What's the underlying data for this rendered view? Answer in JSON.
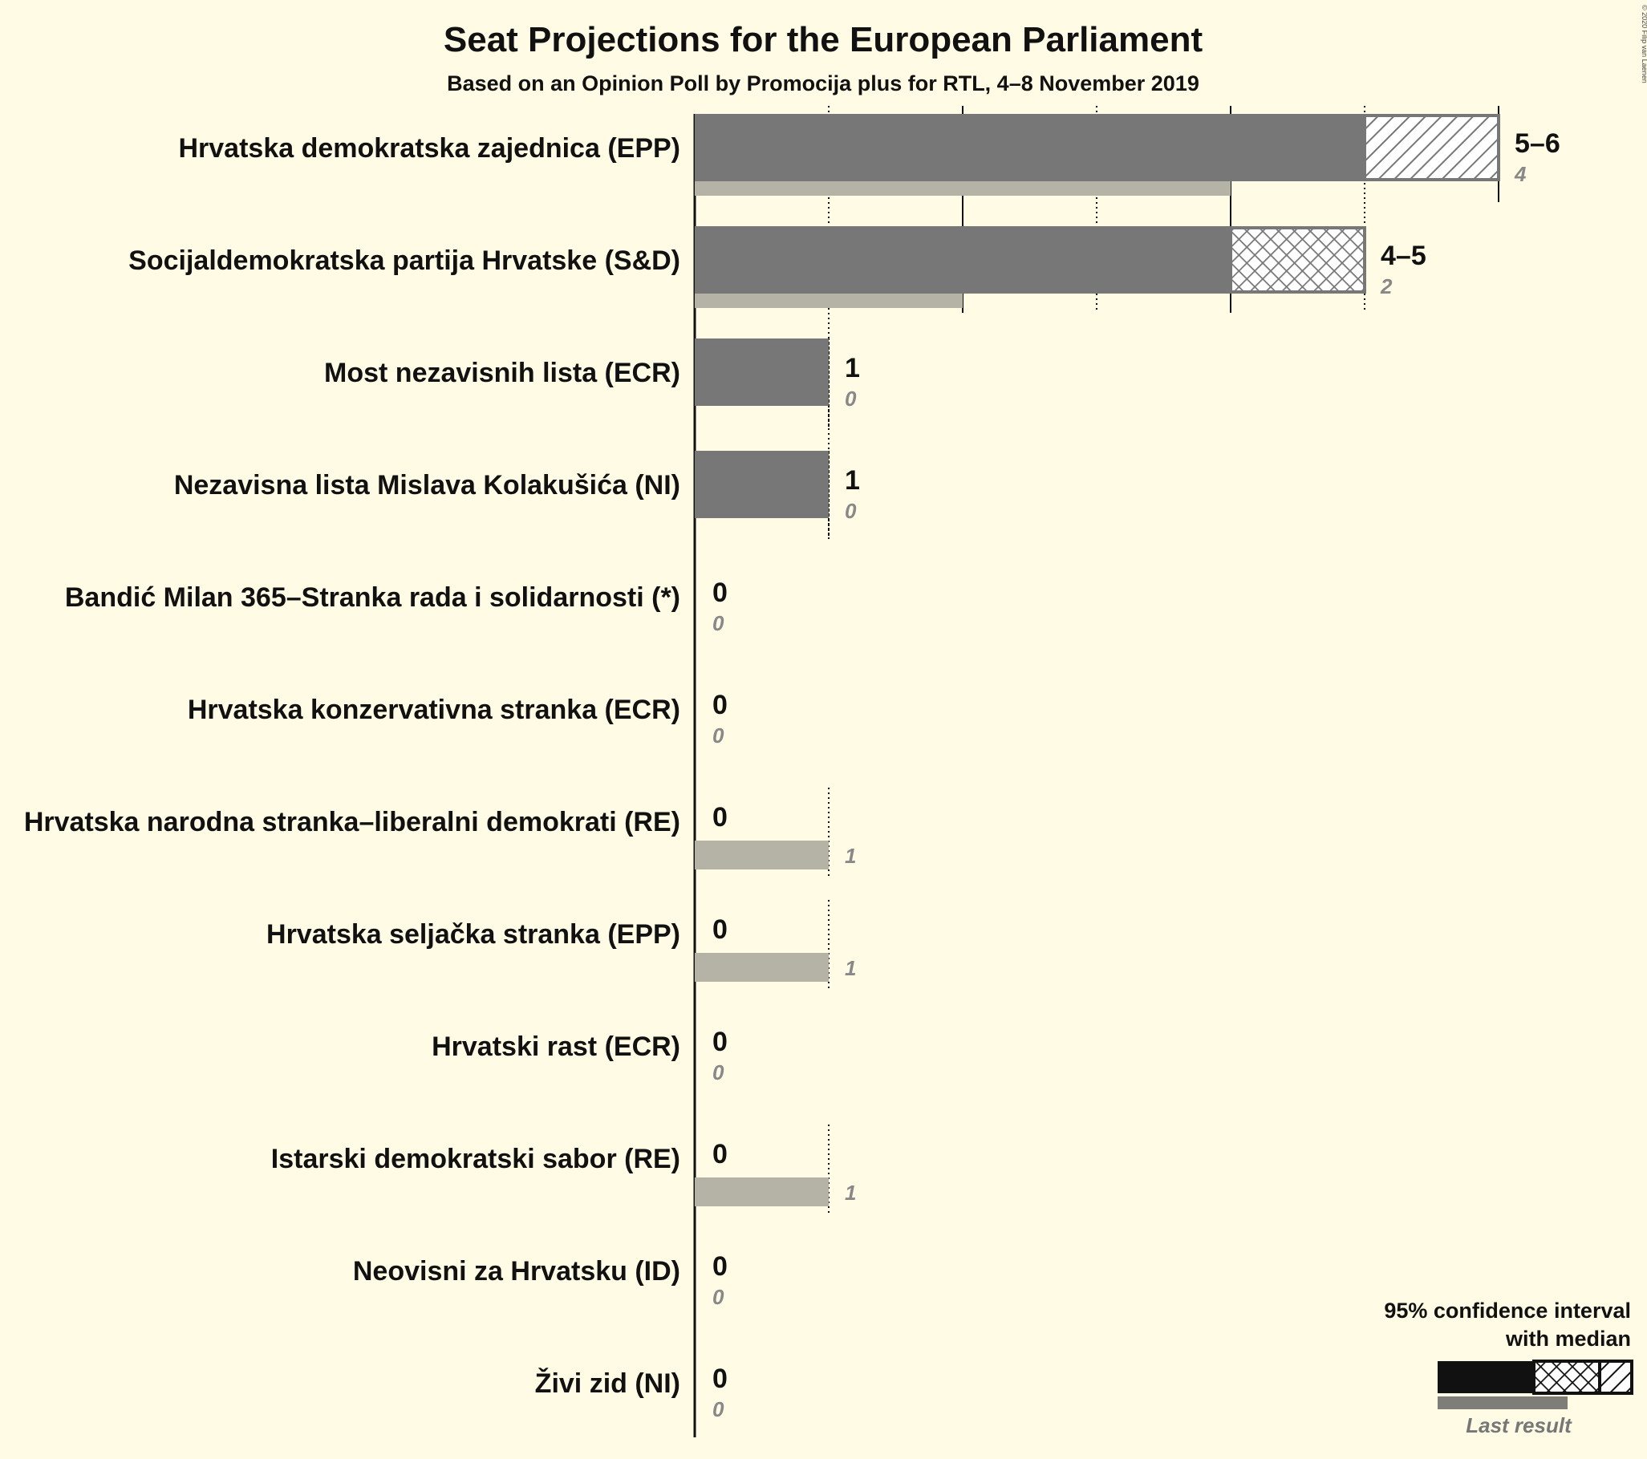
{
  "copyright": "© 2020 Filip van Laenen",
  "chart_data": {
    "type": "bar",
    "title": "Seat Projections for the European Parliament",
    "subtitle": "Based on an Opinion Poll by Promocija plus for RTL, 4–8 November 2019",
    "xlim": [
      0,
      6
    ],
    "grid": true,
    "legend_position": "bottom-right",
    "colors": {
      "background": "#fffbe4",
      "bar": "#777777",
      "last_result": "#b5b2a6",
      "hatch": "#777777",
      "label": "#111111",
      "last_label": "#888888"
    },
    "series": [
      {
        "name": "95% confidence interval with median",
        "field": "projection"
      },
      {
        "name": "Last result",
        "field": "last"
      }
    ],
    "parties": [
      {
        "name": "Hrvatska demokratska zajednica (EPP)",
        "low": 5,
        "median": 5,
        "high": 6,
        "label": "5–6",
        "last": 4,
        "last_label": "4"
      },
      {
        "name": "Socijaldemokratska partija Hrvatske (S&D)",
        "low": 4,
        "median": 4,
        "high": 5,
        "label": "4–5",
        "last": 2,
        "last_label": "2"
      },
      {
        "name": "Most nezavisnih lista (ECR)",
        "low": 1,
        "median": 1,
        "high": 1,
        "label": "1",
        "last": 0,
        "last_label": "0"
      },
      {
        "name": "Nezavisna lista Mislava Kolakušića (NI)",
        "low": 1,
        "median": 1,
        "high": 1,
        "label": "1",
        "last": 0,
        "last_label": "0"
      },
      {
        "name": "Bandić Milan 365–Stranka rada i solidarnosti (*)",
        "low": 0,
        "median": 0,
        "high": 0,
        "label": "0",
        "last": 0,
        "last_label": "0"
      },
      {
        "name": "Hrvatska konzervativna stranka (ECR)",
        "low": 0,
        "median": 0,
        "high": 0,
        "label": "0",
        "last": 0,
        "last_label": "0"
      },
      {
        "name": "Hrvatska narodna stranka–liberalni demokrati (RE)",
        "low": 0,
        "median": 0,
        "high": 0,
        "label": "0",
        "last": 1,
        "last_label": "1"
      },
      {
        "name": "Hrvatska seljačka stranka (EPP)",
        "low": 0,
        "median": 0,
        "high": 0,
        "label": "0",
        "last": 1,
        "last_label": "1"
      },
      {
        "name": "Hrvatski rast (ECR)",
        "low": 0,
        "median": 0,
        "high": 0,
        "label": "0",
        "last": 0,
        "last_label": "0"
      },
      {
        "name": "Istarski demokratski sabor (RE)",
        "low": 0,
        "median": 0,
        "high": 0,
        "label": "0",
        "last": 1,
        "last_label": "1"
      },
      {
        "name": "Neovisni za Hrvatsku (ID)",
        "low": 0,
        "median": 0,
        "high": 0,
        "label": "0",
        "last": 0,
        "last_label": "0"
      },
      {
        "name": "Živi zid (NI)",
        "low": 0,
        "median": 0,
        "high": 0,
        "label": "0",
        "last": 0,
        "last_label": "0"
      }
    ],
    "legend": {
      "ci_line1": "95% confidence interval",
      "ci_line2": "with median",
      "last_result": "Last result"
    }
  }
}
